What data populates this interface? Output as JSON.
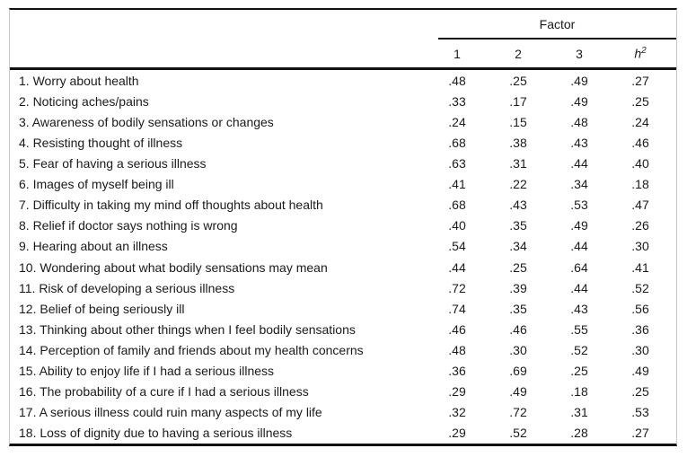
{
  "page": {
    "background": "#ffffff",
    "text_color": "#1a1a1a",
    "rule_color": "#111111",
    "frame_side_color": "#c9c9c9"
  },
  "table": {
    "header": {
      "factor_group_label": "Factor",
      "factor_columns": [
        "1",
        "2",
        "3"
      ],
      "communality_base": "h",
      "communality_sup": "2"
    },
    "rows": [
      {
        "label": "1. Worry about health",
        "f1": ".48",
        "f2": ".25",
        "f3": ".49",
        "h2": ".27"
      },
      {
        "label": "2. Noticing aches/pains",
        "f1": ".33",
        "f2": ".17",
        "f3": ".49",
        "h2": ".25"
      },
      {
        "label": "3. Awareness of bodily sensations or changes",
        "f1": ".24",
        "f2": ".15",
        "f3": ".48",
        "h2": ".24"
      },
      {
        "label": "4. Resisting thought of illness",
        "f1": ".68",
        "f2": ".38",
        "f3": ".43",
        "h2": ".46"
      },
      {
        "label": "5. Fear of having a serious illness",
        "f1": ".63",
        "f2": ".31",
        "f3": ".44",
        "h2": ".40"
      },
      {
        "label": "6. Images of myself being ill",
        "f1": ".41",
        "f2": ".22",
        "f3": ".34",
        "h2": ".18"
      },
      {
        "label": "7. Difficulty in taking my mind off thoughts about health",
        "f1": ".68",
        "f2": ".43",
        "f3": ".53",
        "h2": ".47"
      },
      {
        "label": "8. Relief if doctor says nothing is wrong",
        "f1": ".40",
        "f2": ".35",
        "f3": ".49",
        "h2": ".26"
      },
      {
        "label": "9. Hearing about an illness",
        "f1": ".54",
        "f2": ".34",
        "f3": ".44",
        "h2": ".30"
      },
      {
        "label": "10. Wondering about what bodily sensations may mean",
        "f1": ".44",
        "f2": ".25",
        "f3": ".64",
        "h2": ".41"
      },
      {
        "label": "11. Risk of developing a serious illness",
        "f1": ".72",
        "f2": ".39",
        "f3": ".44",
        "h2": ".52"
      },
      {
        "label": "12. Belief of being seriously ill",
        "f1": ".74",
        "f2": ".35",
        "f3": ".43",
        "h2": ".56"
      },
      {
        "label": "13. Thinking about other things when I feel bodily sensations",
        "f1": ".46",
        "f2": ".46",
        "f3": ".55",
        "h2": ".36"
      },
      {
        "label": "14. Perception of family and friends about my health concerns",
        "f1": ".48",
        "f2": ".30",
        "f3": ".52",
        "h2": ".30"
      },
      {
        "label": "15. Ability to enjoy life if I had a serious illness",
        "f1": ".36",
        "f2": ".69",
        "f3": ".25",
        "h2": ".49"
      },
      {
        "label": "16. The probability of a cure if I had a serious illness",
        "f1": ".29",
        "f2": ".49",
        "f3": ".18",
        "h2": ".25"
      },
      {
        "label": "17. A serious illness could ruin many aspects of my life",
        "f1": ".32",
        "f2": ".72",
        "f3": ".31",
        "h2": ".53"
      },
      {
        "label": "18. Loss of dignity due to having a serious illness",
        "f1": ".29",
        "f2": ".52",
        "f3": ".28",
        "h2": ".27"
      }
    ]
  }
}
